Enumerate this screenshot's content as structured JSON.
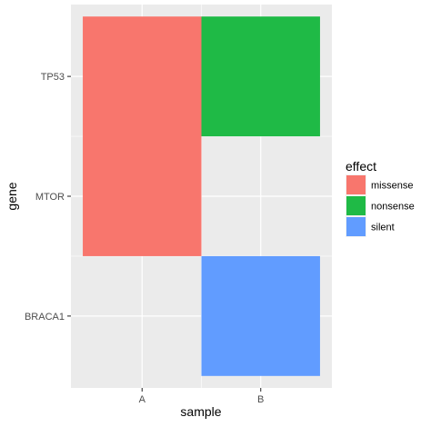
{
  "chart_data": {
    "type": "heatmap",
    "xlabel": "sample",
    "ylabel": "gene",
    "x_categories": [
      "A",
      "B"
    ],
    "y_categories": [
      "BRACA1",
      "MTOR",
      "TP53"
    ],
    "legend": {
      "title": "effect",
      "position": "right",
      "entries": [
        {
          "label": "missense",
          "color": "#F8766D"
        },
        {
          "label": "nonsense",
          "color": "#1FBA46"
        },
        {
          "label": "silent",
          "color": "#619CFF"
        }
      ]
    },
    "cells": [
      {
        "x": "A",
        "y_from": "MTOR",
        "y_to": "TP53",
        "effect": "missense"
      },
      {
        "x": "B",
        "y_from": "TP53",
        "y_to": "TP53",
        "effect": "nonsense"
      },
      {
        "x": "B",
        "y_from": "BRACA1",
        "y_to": "BRACA1",
        "effect": "silent"
      }
    ],
    "grid": true,
    "panel_background": "#EBEBEB",
    "grid_color": "#FFFFFF"
  }
}
